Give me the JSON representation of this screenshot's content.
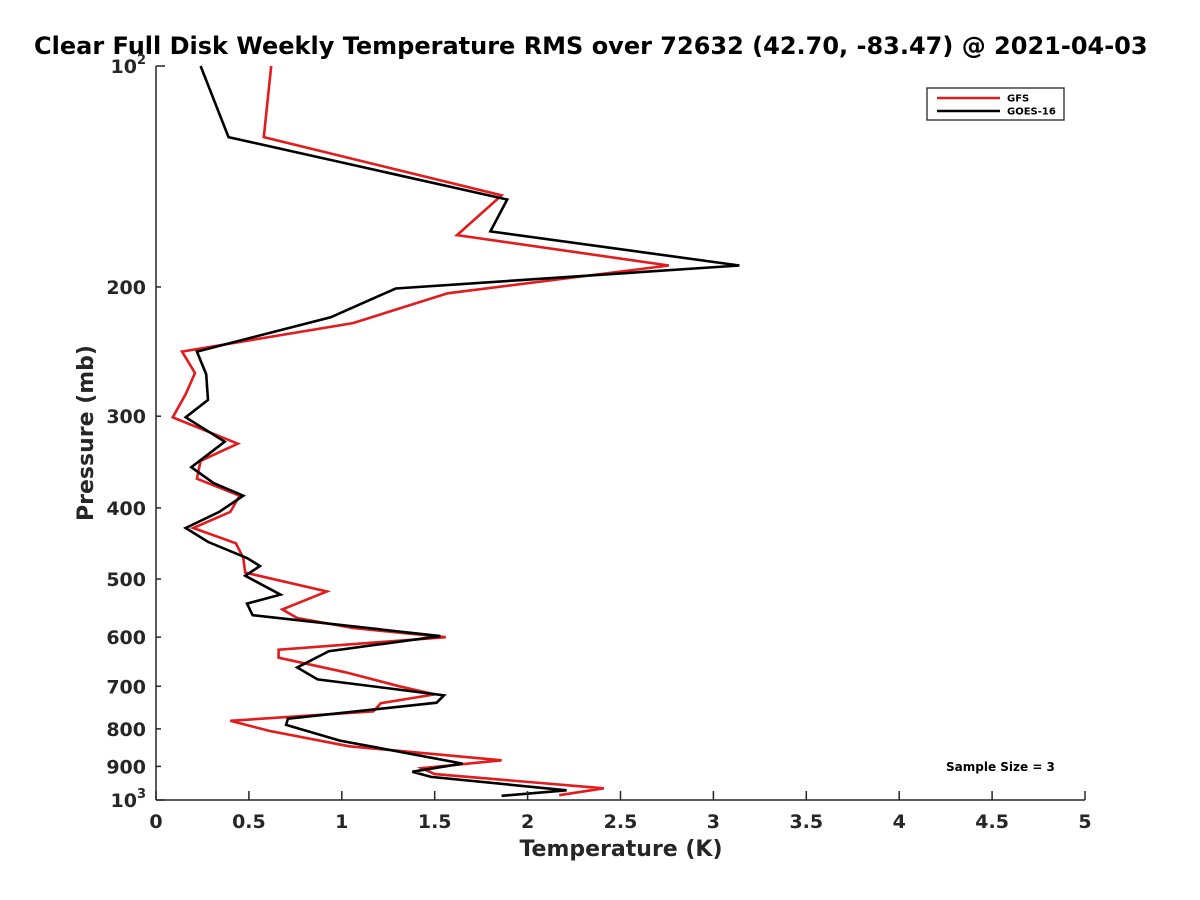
{
  "chart_data": {
    "type": "line",
    "title": "Clear Full Disk Weekly Temperature RMS over 72632 (42.70, -83.47) @ 2021-04-03",
    "xlabel": "Temperature (K)",
    "ylabel": "Pressure (mb)",
    "xlim": [
      0,
      5
    ],
    "ylim": [
      100,
      1000
    ],
    "y_scale": "log",
    "y_reversed": true,
    "grid": false,
    "legend_position": "top-right",
    "x_ticks": [
      "0",
      "0.5",
      "1",
      "1.5",
      "2",
      "2.5",
      "3",
      "3.5",
      "4",
      "4.5",
      "5"
    ],
    "x_tick_values": [
      0,
      0.5,
      1,
      1.5,
      2,
      2.5,
      3,
      3.5,
      4,
      4.5,
      5
    ],
    "y_ticks": [
      {
        "value": 100,
        "base": "10",
        "exp": "2"
      },
      {
        "value": 200,
        "base": "200",
        "exp": ""
      },
      {
        "value": 300,
        "base": "300",
        "exp": ""
      },
      {
        "value": 400,
        "base": "400",
        "exp": ""
      },
      {
        "value": 500,
        "base": "500",
        "exp": ""
      },
      {
        "value": 600,
        "base": "600",
        "exp": ""
      },
      {
        "value": 700,
        "base": "700",
        "exp": ""
      },
      {
        "value": 800,
        "base": "800",
        "exp": ""
      },
      {
        "value": 900,
        "base": "900",
        "exp": ""
      },
      {
        "value": 1000,
        "base": "10",
        "exp": "3"
      }
    ],
    "annotation": "Sample Size = 3",
    "series": [
      {
        "name": "GFS",
        "color": "#e41a1c",
        "points": [
          [
            0.62,
            100
          ],
          [
            0.58,
            125
          ],
          [
            1.86,
            150
          ],
          [
            1.62,
            170
          ],
          [
            2.76,
            187
          ],
          [
            1.57,
            204
          ],
          [
            1.06,
            224
          ],
          [
            0.14,
            245
          ],
          [
            0.21,
            262
          ],
          [
            0.16,
            280
          ],
          [
            0.09,
            301
          ],
          [
            0.44,
            327
          ],
          [
            0.24,
            345
          ],
          [
            0.22,
            365
          ],
          [
            0.45,
            385
          ],
          [
            0.4,
            405
          ],
          [
            0.2,
            426
          ],
          [
            0.43,
            447
          ],
          [
            0.47,
            468
          ],
          [
            0.48,
            490
          ],
          [
            0.92,
            520
          ],
          [
            0.68,
            550
          ],
          [
            0.76,
            565
          ],
          [
            1.06,
            583
          ],
          [
            1.56,
            600
          ],
          [
            0.66,
            624
          ],
          [
            0.66,
            640
          ],
          [
            1.02,
            670
          ],
          [
            1.31,
            700
          ],
          [
            1.5,
            718
          ],
          [
            1.21,
            738
          ],
          [
            1.17,
            757
          ],
          [
            0.4,
            780
          ],
          [
            0.61,
            805
          ],
          [
            1.04,
            845
          ],
          [
            1.86,
            883
          ],
          [
            1.43,
            905
          ],
          [
            1.5,
            922
          ],
          [
            2.41,
            964
          ],
          [
            2.17,
            985
          ]
        ]
      },
      {
        "name": "GOES-16",
        "color": "#000000",
        "points": [
          [
            0.24,
            100
          ],
          [
            0.39,
            125
          ],
          [
            1.89,
            152
          ],
          [
            1.8,
            168
          ],
          [
            3.14,
            187
          ],
          [
            1.29,
            201
          ],
          [
            0.94,
            220
          ],
          [
            0.22,
            245
          ],
          [
            0.27,
            263
          ],
          [
            0.28,
            285
          ],
          [
            0.16,
            301
          ],
          [
            0.37,
            325
          ],
          [
            0.19,
            352
          ],
          [
            0.31,
            370
          ],
          [
            0.47,
            385
          ],
          [
            0.34,
            405
          ],
          [
            0.16,
            426
          ],
          [
            0.28,
            445
          ],
          [
            0.49,
            468
          ],
          [
            0.56,
            480
          ],
          [
            0.48,
            495
          ],
          [
            0.67,
            525
          ],
          [
            0.49,
            540
          ],
          [
            0.52,
            560
          ],
          [
            1.53,
            598
          ],
          [
            0.93,
            627
          ],
          [
            0.76,
            660
          ],
          [
            0.87,
            685
          ],
          [
            1.55,
            720
          ],
          [
            1.51,
            737
          ],
          [
            0.71,
            775
          ],
          [
            0.7,
            790
          ],
          [
            0.99,
            830
          ],
          [
            1.65,
            892
          ],
          [
            1.38,
            915
          ],
          [
            1.48,
            930
          ],
          [
            2.21,
            970
          ],
          [
            1.86,
            987
          ]
        ]
      }
    ]
  }
}
